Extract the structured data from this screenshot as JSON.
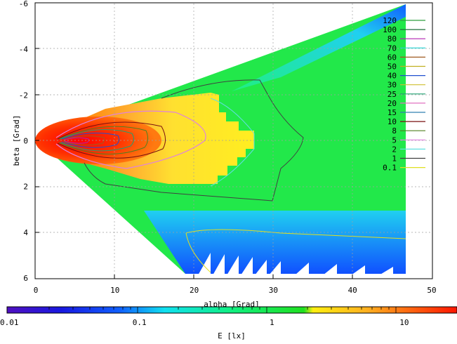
{
  "chart_data": {
    "type": "heatmap",
    "xlabel": "alpha [Grad]",
    "ylabel": "beta [Grad]",
    "colorbar_label": "E [lx]",
    "xlim": [
      0,
      50
    ],
    "ylim": [
      -6,
      6
    ],
    "y_inverted": true,
    "x_ticks": [
      "0",
      "10",
      "20",
      "30",
      "40",
      "50"
    ],
    "x_tick_values": [
      0,
      10,
      20,
      30,
      40,
      50
    ],
    "y_ticks": [
      "-6",
      "-4",
      "-2",
      "0",
      "2",
      "4",
      "6"
    ],
    "y_tick_values": [
      -6,
      -4,
      -2,
      0,
      2,
      4,
      6
    ],
    "grid": true,
    "legend_position": "right",
    "contour_levels": [
      {
        "label": "120",
        "color": "#2e9e3e"
      },
      {
        "label": "100",
        "color": "#1f6f3a"
      },
      {
        "label": "80",
        "color": "#b020b0"
      },
      {
        "label": "70",
        "color": "#20d0d0"
      },
      {
        "label": "60",
        "color": "#a05a20"
      },
      {
        "label": "50",
        "color": "#c0b020"
      },
      {
        "label": "40",
        "color": "#2050d0"
      },
      {
        "label": "30",
        "color": "#d0c030"
      },
      {
        "label": "25",
        "color": "#20a070"
      },
      {
        "label": "20",
        "color": "#e070c0"
      },
      {
        "label": "15",
        "color": "#3080b0"
      },
      {
        "label": "10",
        "color": "#7a1010"
      },
      {
        "label": "8",
        "color": "#508020"
      },
      {
        "label": "5",
        "color": "#e080e0"
      },
      {
        "label": "2",
        "color": "#60e0e0"
      },
      {
        "label": "1",
        "color": "#404040"
      },
      {
        "label": "0.1",
        "color": "#e0e020"
      }
    ],
    "colorbar": {
      "scale": "log",
      "range": [
        0.01,
        25
      ],
      "tick_labels": [
        "0.01",
        "0.1",
        "1",
        "10"
      ],
      "tick_values": [
        0.01,
        0.1,
        1,
        10
      ]
    }
  }
}
